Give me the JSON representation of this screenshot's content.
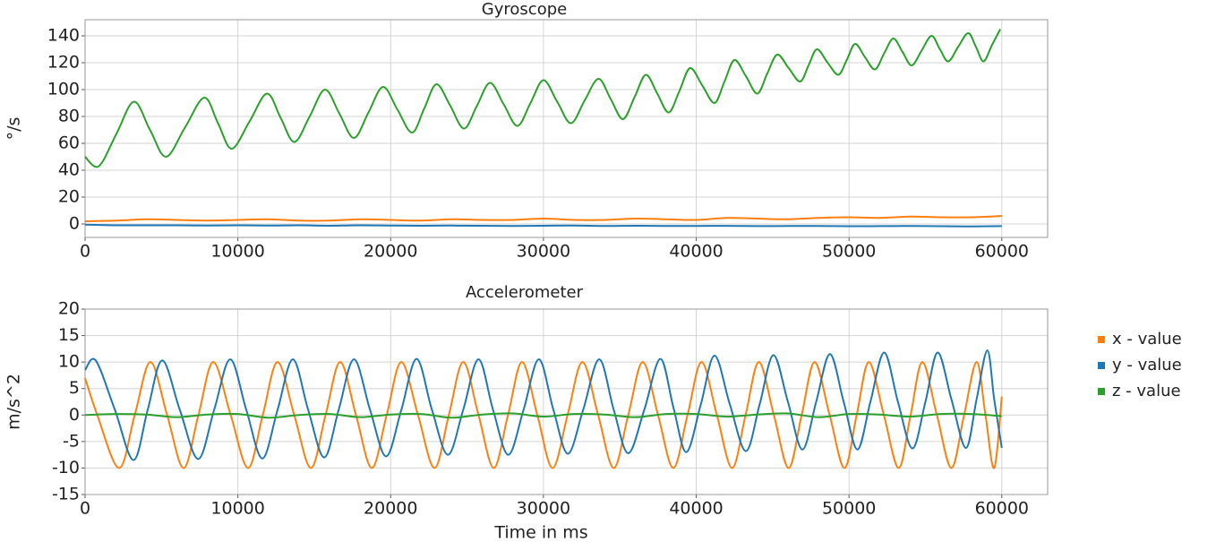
{
  "chart_data": [
    {
      "type": "line",
      "title": "Gyroscope",
      "ylabel": "°/s",
      "xlim": [
        0,
        63000
      ],
      "ylim": [
        -10,
        152
      ],
      "xticks": [
        0,
        10000,
        20000,
        30000,
        40000,
        50000,
        60000
      ],
      "yticks": [
        0,
        20,
        40,
        60,
        80,
        100,
        120,
        140
      ],
      "grid": true,
      "series": [
        {
          "name": "x - value",
          "color": "#ff7f0e",
          "x": [
            0,
            2000,
            4000,
            6000,
            8000,
            10000,
            12000,
            14000,
            16000,
            18000,
            20000,
            22000,
            24000,
            26000,
            28000,
            30000,
            32000,
            34000,
            36000,
            38000,
            40000,
            42000,
            44000,
            46000,
            48000,
            50000,
            52000,
            54000,
            56000,
            58000,
            60000
          ],
          "values": [
            2,
            2.5,
            3.5,
            3,
            2.5,
            3,
            3.5,
            2.5,
            2.5,
            3.5,
            3,
            2.5,
            3.5,
            3,
            3,
            4,
            3,
            3,
            4,
            3.5,
            3,
            4.5,
            4,
            3.5,
            4.5,
            5,
            4.5,
            5.5,
            5,
            5,
            6
          ]
        },
        {
          "name": "y - value",
          "color": "#1f77b4",
          "x": [
            0,
            2000,
            4000,
            6000,
            8000,
            10000,
            12000,
            14000,
            16000,
            18000,
            20000,
            22000,
            24000,
            26000,
            28000,
            30000,
            32000,
            34000,
            36000,
            38000,
            40000,
            42000,
            44000,
            46000,
            48000,
            50000,
            52000,
            54000,
            56000,
            58000,
            60000
          ],
          "values": [
            -0.5,
            -1,
            -1,
            -1,
            -1.2,
            -1,
            -1.2,
            -1,
            -1.3,
            -1,
            -1.2,
            -1.3,
            -1.2,
            -1.3,
            -1.5,
            -1.3,
            -1.2,
            -1.5,
            -1.3,
            -1.5,
            -1.5,
            -1.4,
            -1.6,
            -1.5,
            -1.5,
            -1.7,
            -1.6,
            -1.5,
            -1.7,
            -1.8,
            -1.6
          ]
        },
        {
          "name": "z - value",
          "color": "#2ca02c",
          "x": [
            0,
            900,
            2050,
            3200,
            4250,
            5300,
            6550,
            7800,
            8700,
            9600,
            10750,
            11900,
            12800,
            13700,
            14700,
            15700,
            16650,
            17600,
            18550,
            19500,
            20450,
            21400,
            22200,
            23000,
            23900,
            24800,
            25650,
            26500,
            27400,
            28300,
            29150,
            30000,
            30900,
            31800,
            32700,
            33600,
            34400,
            35200,
            35950,
            36700,
            37450,
            38200,
            38900,
            39600,
            40400,
            41200,
            41850,
            42500,
            43250,
            44000,
            44650,
            45300,
            46050,
            46800,
            47350,
            47900,
            48600,
            49300,
            49850,
            50400,
            51050,
            51700,
            52300,
            52900,
            53500,
            54100,
            54750,
            55400,
            55950,
            56500,
            57150,
            57800,
            58300,
            58800,
            59350,
            59900
          ],
          "values": [
            50,
            43,
            67,
            91,
            70,
            50,
            72,
            94,
            75,
            56,
            76,
            97,
            79,
            61,
            80,
            100,
            82,
            64,
            83,
            102,
            85,
            68,
            86,
            104,
            88,
            71,
            88,
            105,
            89,
            73,
            90,
            107,
            91,
            75,
            92,
            108,
            93,
            78,
            94,
            111,
            97,
            83,
            99,
            116,
            103,
            90,
            106,
            122,
            110,
            97,
            112,
            126,
            116,
            106,
            118,
            130,
            120,
            111,
            122,
            134,
            124,
            115,
            127,
            138,
            128,
            118,
            129,
            140,
            130,
            121,
            132,
            142,
            132,
            121,
            133,
            145
          ]
        }
      ]
    },
    {
      "type": "line",
      "title": "Accelerometer",
      "ylabel": "m/s^2",
      "xlabel": "Time in ms",
      "xlim": [
        0,
        63000
      ],
      "ylim": [
        -15,
        20
      ],
      "xticks": [
        0,
        10000,
        20000,
        30000,
        40000,
        50000,
        60000
      ],
      "yticks": [
        -15,
        -10,
        -5,
        0,
        5,
        10,
        15,
        20
      ],
      "grid": true,
      "legend": "right",
      "series": [
        {
          "name": "x - value",
          "color": "#ff7f0e",
          "x": [
            0,
            800,
            2230,
            3250,
            4280,
            5370,
            6450,
            7420,
            8390,
            9530,
            10670,
            11630,
            12600,
            13690,
            14780,
            15740,
            16700,
            17730,
            18770,
            19740,
            20700,
            21790,
            22870,
            23810,
            24750,
            25750,
            26750,
            27680,
            28600,
            29600,
            30600,
            31580,
            32550,
            33580,
            34600,
            35550,
            36500,
            37500,
            38500,
            39430,
            40350,
            41350,
            42350,
            43230,
            44100,
            45080,
            46050,
            46900,
            47750,
            48730,
            49700,
            50500,
            51300,
            52280,
            53250,
            54030,
            54800,
            55750,
            56700,
            57530,
            58350,
            58930,
            59500,
            60000
          ],
          "values": [
            7,
            0,
            -10,
            0,
            10,
            0,
            -10,
            0,
            10,
            0,
            -10,
            0,
            10,
            0,
            -10,
            0,
            10,
            0,
            -10,
            0,
            10,
            0,
            -10,
            0,
            10,
            0,
            -10,
            0,
            10,
            0,
            -10,
            0,
            10,
            0,
            -10,
            0,
            10,
            0,
            -10,
            0,
            10,
            0,
            -10,
            0,
            10,
            0,
            -10,
            0,
            10,
            0,
            -10,
            0,
            10,
            0,
            -10,
            0,
            10,
            0,
            -10,
            0,
            10,
            0,
            -10,
            3.5
          ]
        },
        {
          "name": "y - value",
          "color": "#1f77b4",
          "x": [
            0,
            700,
            1950,
            3170,
            4100,
            5050,
            6200,
            7400,
            8450,
            9500,
            10550,
            11600,
            12600,
            13600,
            14600,
            15650,
            16600,
            17600,
            18650,
            19700,
            20700,
            21700,
            22700,
            23750,
            24750,
            25750,
            26700,
            27700,
            28700,
            29700,
            30650,
            31600,
            32600,
            33650,
            34600,
            35550,
            36600,
            37650,
            38500,
            39350,
            40300,
            41200,
            42200,
            43250,
            44150,
            45050,
            46000,
            46950,
            47850,
            48750,
            49650,
            50550,
            51400,
            52300,
            53200,
            54150,
            55000,
            55800,
            56700,
            57650,
            58350,
            59050,
            59500,
            60000
          ],
          "values": [
            8.5,
            10.3,
            1,
            -8.5,
            1,
            10.3,
            1,
            -8.3,
            1,
            10.5,
            1,
            -8.2,
            1,
            10.5,
            1,
            -8,
            1,
            10.5,
            1,
            -7.8,
            1,
            10.6,
            1,
            -7.5,
            1,
            10.5,
            1,
            -7.5,
            1,
            10.5,
            1,
            -7.3,
            1,
            10.5,
            1,
            -7.2,
            1,
            10.6,
            1.5,
            -7,
            2,
            11.2,
            2,
            -6.8,
            2,
            11.3,
            2.5,
            -6.5,
            2.5,
            11.5,
            2.5,
            -6.5,
            2.5,
            11.8,
            2.5,
            -6.3,
            2.5,
            11.8,
            3,
            -6.2,
            3,
            12.2,
            3,
            -6.2
          ]
        },
        {
          "name": "z - value",
          "color": "#2ca02c",
          "x": [
            0,
            2000,
            4000,
            6000,
            8000,
            10000,
            12000,
            14000,
            16000,
            18000,
            20000,
            22000,
            24000,
            26000,
            28000,
            30000,
            32000,
            34000,
            36000,
            38000,
            40000,
            42000,
            44000,
            46000,
            48000,
            50000,
            52000,
            54000,
            56000,
            58000,
            60000
          ],
          "values": [
            0,
            0.2,
            0.1,
            -0.4,
            0.1,
            0.2,
            -0.5,
            0,
            0.2,
            -0.4,
            0.1,
            0.2,
            -0.5,
            0.1,
            0.3,
            -0.3,
            0.2,
            0.1,
            -0.4,
            0.2,
            0.2,
            -0.3,
            0.1,
            0.3,
            -0.4,
            0.2,
            0.1,
            -0.3,
            0.2,
            0.2,
            -0.2
          ]
        }
      ]
    }
  ]
}
